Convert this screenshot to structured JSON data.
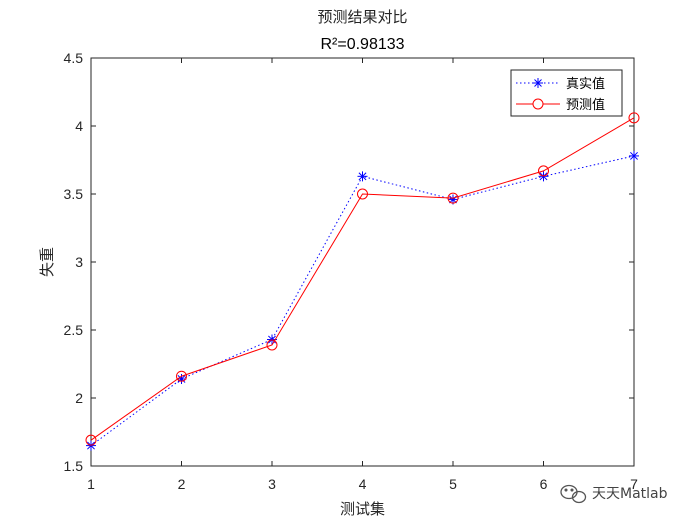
{
  "chart_data": {
    "type": "line",
    "title": "预测结果对比",
    "subtitle": "R²=0.98133",
    "xlabel": "测试集",
    "ylabel": "失重",
    "x": [
      1,
      2,
      3,
      4,
      5,
      6,
      7
    ],
    "xlim": [
      1,
      7
    ],
    "ylim": [
      1.5,
      4.5
    ],
    "xticks": [
      "1",
      "2",
      "3",
      "4",
      "5",
      "6",
      "7"
    ],
    "yticks": [
      "1.5",
      "2",
      "2.5",
      "3",
      "3.5",
      "4",
      "4.5"
    ],
    "grid": false,
    "legend": "top-right",
    "series": [
      {
        "name": "真实值",
        "values": [
          1.65,
          2.14,
          2.43,
          3.63,
          3.46,
          3.63,
          3.78
        ],
        "color": "#0000FF",
        "marker": "asterisk",
        "line_style": "dotted"
      },
      {
        "name": "预测值",
        "values": [
          1.69,
          2.16,
          2.39,
          3.5,
          3.47,
          3.67,
          4.06
        ],
        "color": "#FF0000",
        "marker": "circle",
        "line_style": "solid"
      }
    ]
  },
  "watermark": {
    "text": "天天Matlab",
    "icon": "wechat-icon"
  }
}
